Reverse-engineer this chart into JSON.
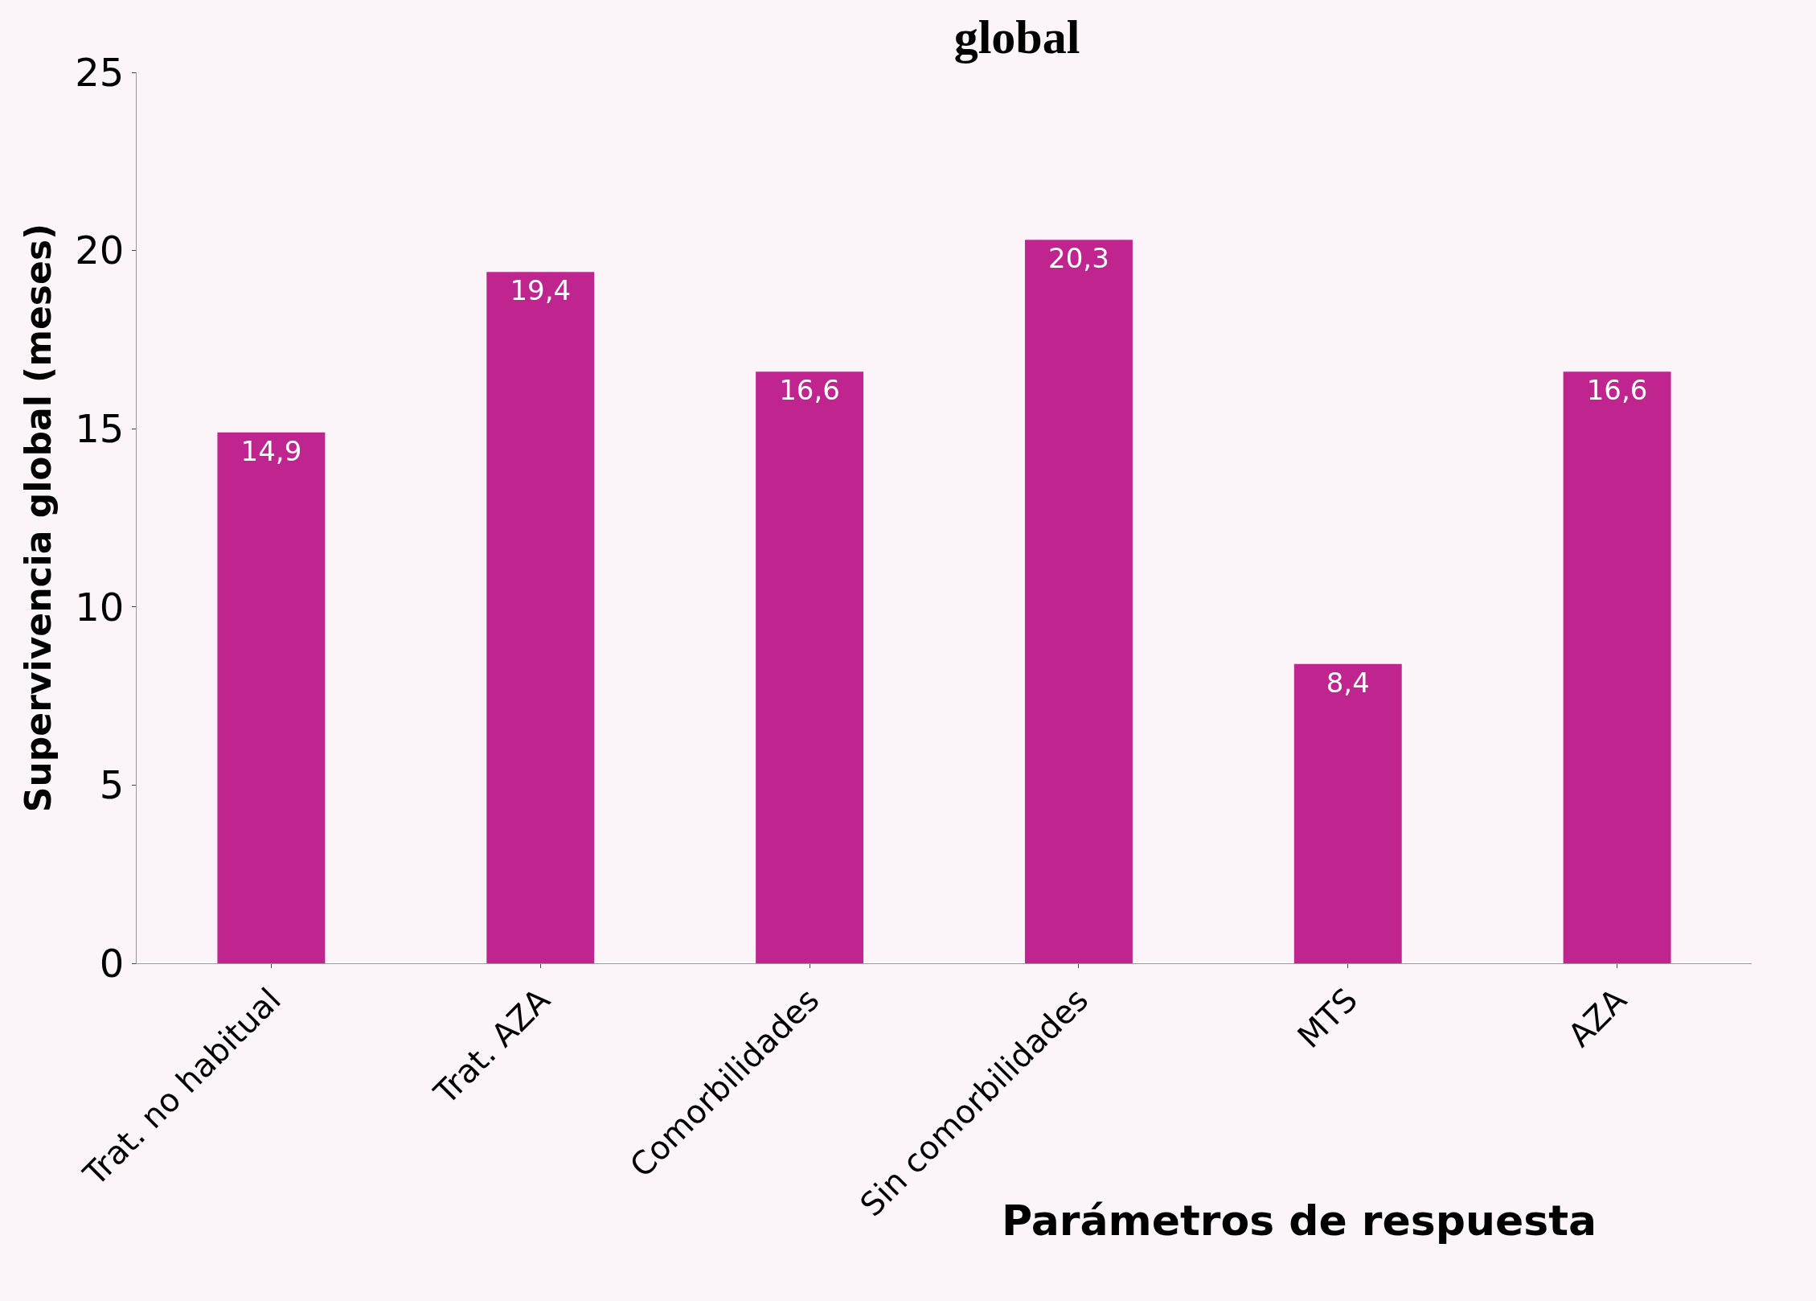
{
  "chart_data": {
    "type": "bar",
    "title": "global",
    "xlabel": "Parámetros de respuesta",
    "ylabel": "Supervivencia global (meses)",
    "categories": [
      "Trat. no habitual",
      "Trat. AZA",
      "Comorbilidades",
      "Sin comorbilidades",
      "MTS",
      "AZA"
    ],
    "values": [
      14.9,
      19.4,
      16.6,
      20.3,
      8.4,
      16.6
    ],
    "value_labels": [
      "14,9",
      "19,4",
      "16,6",
      "20,3",
      "8,4",
      "16,6"
    ],
    "color": "#c0248f",
    "ylim": [
      0,
      25
    ],
    "yticks": [
      0,
      5,
      10,
      15,
      20,
      25
    ],
    "grid": false,
    "legend": false
  }
}
